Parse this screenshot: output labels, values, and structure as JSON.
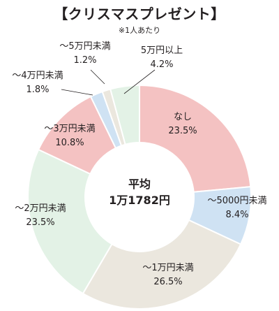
{
  "header": {
    "title": "【クリスマスプレゼント】",
    "note": "※1人あたり"
  },
  "center": {
    "line1": "平均",
    "line2": "1万1782円"
  },
  "chart_data": {
    "type": "pie",
    "title": "【クリスマスプレゼント】",
    "subtitle": "※1人あたり",
    "donut": true,
    "slices": [
      {
        "label": "なし",
        "value": 23.5,
        "value_text": "23.5%",
        "color": "#f4c2c2"
      },
      {
        "label": "～5000円未満",
        "value": 8.4,
        "value_text": "8.4%",
        "color": "#cfe2f3"
      },
      {
        "label": "～1万円未満",
        "value": 26.5,
        "value_text": "26.5%",
        "color": "#ebe7de"
      },
      {
        "label": "～2万円未満",
        "value": 23.5,
        "value_text": "23.5%",
        "color": "#e3f2e6"
      },
      {
        "label": "～3万円未満",
        "value": 10.8,
        "value_text": "10.8%",
        "color": "#f4c2c2"
      },
      {
        "label": "～4万円未満",
        "value": 1.8,
        "value_text": "1.8%",
        "color": "#cfe2f3"
      },
      {
        "label": "～5万円未満",
        "value": 1.2,
        "value_text": "1.2%",
        "color": "#ebe7de"
      },
      {
        "label": "5万円以上",
        "value": 4.2,
        "value_text": "4.2%",
        "color": "#e3f2e6"
      }
    ]
  }
}
